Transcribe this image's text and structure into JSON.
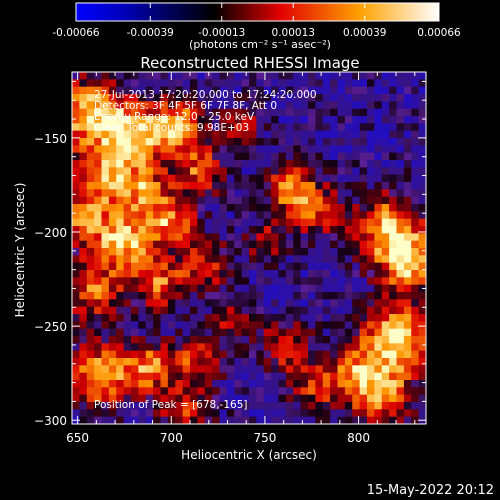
{
  "colorbar": {
    "ticks": [
      "-0.00066",
      "-0.00039",
      "-0.00013",
      "0.00013",
      "0.00039",
      "0.00066"
    ],
    "tick_values": [
      -0.00066,
      -0.00039,
      -0.00013,
      0.00013,
      0.00039,
      0.00066
    ],
    "units_label": "(photons cm⁻² s⁻¹ asec⁻²)",
    "gradient_colors": [
      "#0000ff",
      "#0000c0",
      "#000000",
      "#e00000",
      "#ffa000",
      "#ffffff"
    ]
  },
  "chart_data": {
    "type": "heatmap",
    "title": "Reconstructed RHESSI Image",
    "xlabel": "Heliocentric X (arcsec)",
    "ylabel": "Heliocentric Y (arcsec)",
    "xlim": [
      647,
      836
    ],
    "ylim": [
      -302,
      -115
    ],
    "x_ticks": [
      650,
      700,
      750,
      800
    ],
    "y_ticks": [
      -150,
      -200,
      -250,
      -300
    ],
    "annotations": [
      "27-Jul-2013 17:20:20.000 to 17:24:20.000",
      "Detectors: 3F 4F 5F 6F 7F 8F, Att 0",
      "Energy Range: 12.0 - 25.0 keV",
      "Clean     Total counts: 9.98E+03"
    ],
    "peak_label": "Position of Peak = [678,-165]",
    "peak_position": [
      678,
      -165
    ],
    "total_counts": "9.98E+03"
  },
  "footer": {
    "date": "15-May-2022 20:12"
  }
}
